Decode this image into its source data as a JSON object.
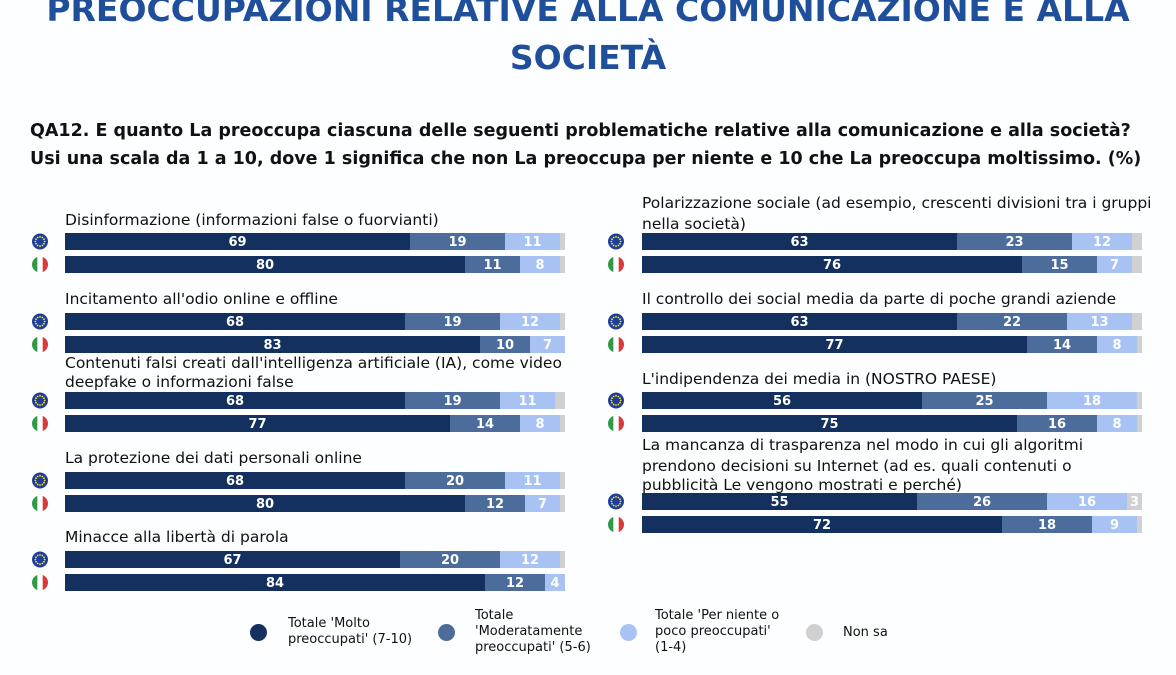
{
  "title": {
    "line1": "PREOCCUPAZIONI RELATIVE ALLA COMUNICAZIONE E ALLA",
    "line2": "SOCIETÀ"
  },
  "question": {
    "line1": "QA12. E quanto La preoccupa ciascuna delle seguenti problematiche relative alla comunicazione e alla società?",
    "line2": "Usi una scala da 1 a 10, dove 1 significa che non La preoccupa per niente e 10 che La preoccupa moltissimo. (%)"
  },
  "colors": {
    "molto": "#13305e",
    "moderatamente": "#4c6d9b",
    "poco": "#a8c3f3",
    "non_sa": "#d0d0d0",
    "eu_flag": "#1d3e9a",
    "eu_stars": "#ffd92b",
    "it_green": "#2f9a48",
    "it_white": "#ffffff",
    "it_red": "#d63a3a"
  },
  "legend": {
    "molto": [
      "Totale 'Molto",
      "preoccupati' (7-10)"
    ],
    "moderatamente": [
      "Totale",
      "'Moderatamente",
      "preoccupati' (5-6)"
    ],
    "poco": [
      "Totale 'Per niente o",
      "poco preoccupati'",
      "(1-4)"
    ],
    "non_sa": [
      "Non sa"
    ]
  },
  "chart_data": {
    "type": "bar",
    "orientation": "horizontal-stacked",
    "unit": "%",
    "series": [
      "Totale 'Molto preoccupati' (7-10)",
      "Totale 'Moderatamente preoccupati' (5-6)",
      "Totale 'Per niente o poco preoccupati' (1-4)",
      "Non sa"
    ],
    "groups": [
      "UE",
      "Italia"
    ],
    "items": [
      {
        "label": [
          "Disinformazione (informazioni false o fuorvianti)"
        ],
        "eu": [
          69,
          19,
          11,
          1
        ],
        "it": [
          80,
          11,
          8,
          1
        ]
      },
      {
        "label": [
          "Incitamento all'odio online e offline"
        ],
        "eu": [
          68,
          19,
          12,
          1
        ],
        "it": [
          83,
          10,
          7,
          0
        ]
      },
      {
        "label": [
          "Contenuti falsi creati dall'intelligenza artificiale (IA), come video",
          "deepfake o informazioni false"
        ],
        "eu": [
          68,
          19,
          11,
          2
        ],
        "it": [
          77,
          14,
          8,
          1
        ]
      },
      {
        "label": [
          "La protezione dei dati personali online"
        ],
        "eu": [
          68,
          20,
          11,
          1
        ],
        "it": [
          80,
          12,
          7,
          1
        ]
      },
      {
        "label": [
          "Minacce alla libertà di parola"
        ],
        "eu": [
          67,
          20,
          12,
          1
        ],
        "it": [
          84,
          12,
          4,
          0
        ]
      },
      {
        "label": [
          "Polarizzazione sociale (ad esempio, crescenti divisioni tra i gruppi",
          "nella società)"
        ],
        "eu": [
          63,
          23,
          12,
          2
        ],
        "it": [
          76,
          15,
          7,
          2
        ]
      },
      {
        "label": [
          "Il controllo dei social media da parte di poche grandi aziende"
        ],
        "eu": [
          63,
          22,
          13,
          2
        ],
        "it": [
          77,
          14,
          8,
          1
        ]
      },
      {
        "label": [
          "L'indipendenza dei media in (NOSTRO PAESE)"
        ],
        "eu": [
          56,
          25,
          18,
          1
        ],
        "it": [
          75,
          16,
          8,
          1
        ]
      },
      {
        "label": [
          "La mancanza di trasparenza nel modo in cui gli algoritmi",
          "prendono decisioni su Internet (ad es. quali contenuti o",
          "pubblicità Le vengono mostrati e perché)"
        ],
        "eu": [
          55,
          26,
          16,
          3
        ],
        "it": [
          72,
          18,
          9,
          1
        ]
      }
    ]
  }
}
